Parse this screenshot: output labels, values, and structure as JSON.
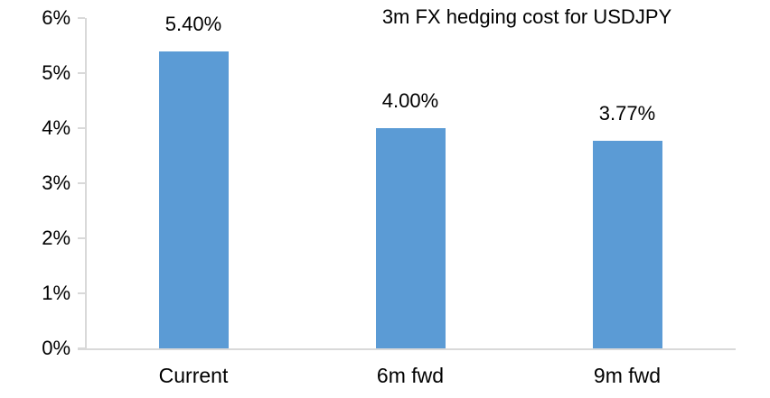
{
  "colors": {
    "bar": "#5B9BD5",
    "axis_line": "#D9D9D9",
    "text": "#000000",
    "background": "#FFFFFF"
  },
  "chart_data": {
    "type": "bar",
    "title": "3m FX hedging cost for USDJPY",
    "categories": [
      "Current",
      "6m fwd",
      "9m fwd"
    ],
    "values": [
      5.4,
      4.0,
      3.77
    ],
    "value_labels": [
      "5.40%",
      "4.00%",
      "3.77%"
    ],
    "xlabel": "",
    "ylabel": "",
    "ylim": [
      0,
      6
    ],
    "ytick_labels": [
      "0%",
      "1%",
      "2%",
      "3%",
      "4%",
      "5%",
      "6%"
    ],
    "grid": false,
    "legend": false,
    "legend_position": null
  }
}
